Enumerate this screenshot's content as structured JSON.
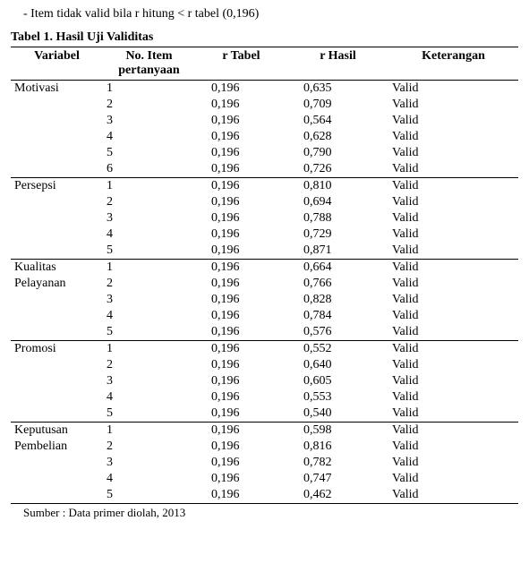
{
  "intro": "- Item tidak valid bila r hitung  < r tabel (0,196)",
  "title": "Tabel 1. Hasil Uji Validitas",
  "headers": {
    "variabel": "Variabel",
    "no_item_line1": "No. Item",
    "no_item_line2": "pertanyaan",
    "r_tabel": "r  Tabel",
    "r_hasil": "r  Hasil",
    "keterangan": "Keterangan"
  },
  "sections": [
    {
      "variabel": "Motivasi",
      "variabel_line2": "",
      "rows": [
        {
          "no": "1",
          "tabel": "0,196",
          "hasil": "0,635",
          "ket": "Valid"
        },
        {
          "no": "2",
          "tabel": "0,196",
          "hasil": "0,709",
          "ket": "Valid"
        },
        {
          "no": "3",
          "tabel": "0,196",
          "hasil": "0,564",
          "ket": "Valid"
        },
        {
          "no": "4",
          "tabel": "0,196",
          "hasil": "0,628",
          "ket": "Valid"
        },
        {
          "no": "5",
          "tabel": "0,196",
          "hasil": "0,790",
          "ket": "Valid"
        },
        {
          "no": "6",
          "tabel": "0,196",
          "hasil": "0,726",
          "ket": "Valid"
        }
      ]
    },
    {
      "variabel": "Persepsi",
      "variabel_line2": "",
      "rows": [
        {
          "no": "1",
          "tabel": "0,196",
          "hasil": "0,810",
          "ket": "Valid"
        },
        {
          "no": "2",
          "tabel": "0,196",
          "hasil": "0,694",
          "ket": "Valid"
        },
        {
          "no": "3",
          "tabel": "0,196",
          "hasil": "0,788",
          "ket": "Valid"
        },
        {
          "no": "4",
          "tabel": "0,196",
          "hasil": "0,729",
          "ket": "Valid"
        },
        {
          "no": "5",
          "tabel": "0,196",
          "hasil": "0,871",
          "ket": "Valid"
        }
      ]
    },
    {
      "variabel": "Kualitas",
      "variabel_line2": "Pelayanan",
      "rows": [
        {
          "no": "1",
          "tabel": "0,196",
          "hasil": "0,664",
          "ket": "Valid"
        },
        {
          "no": "2",
          "tabel": "0,196",
          "hasil": "0,766",
          "ket": "Valid"
        },
        {
          "no": "3",
          "tabel": "0,196",
          "hasil": "0,828",
          "ket": "Valid"
        },
        {
          "no": "4",
          "tabel": "0,196",
          "hasil": "0,784",
          "ket": "Valid"
        },
        {
          "no": "5",
          "tabel": "0,196",
          "hasil": "0,576",
          "ket": "Valid"
        }
      ]
    },
    {
      "variabel": "Promosi",
      "variabel_line2": "",
      "rows": [
        {
          "no": "1",
          "tabel": "0,196",
          "hasil": "0,552",
          "ket": "Valid"
        },
        {
          "no": "2",
          "tabel": "0,196",
          "hasil": "0,640",
          "ket": "Valid"
        },
        {
          "no": "3",
          "tabel": "0,196",
          "hasil": "0,605",
          "ket": "Valid"
        },
        {
          "no": "4",
          "tabel": "0,196",
          "hasil": "0,553",
          "ket": "Valid"
        },
        {
          "no": "5",
          "tabel": "0,196",
          "hasil": "0,540",
          "ket": "Valid"
        }
      ]
    },
    {
      "variabel": "Keputusan",
      "variabel_line2": "Pembelian",
      "rows": [
        {
          "no": "1",
          "tabel": "0,196",
          "hasil": "0,598",
          "ket": "Valid"
        },
        {
          "no": "2",
          "tabel": "0,196",
          "hasil": "0,816",
          "ket": "Valid"
        },
        {
          "no": "3",
          "tabel": "0,196",
          "hasil": "0,782",
          "ket": "Valid"
        },
        {
          "no": "4",
          "tabel": "0,196",
          "hasil": "0,747",
          "ket": "Valid"
        },
        {
          "no": "5",
          "tabel": "0,196",
          "hasil": "0,462",
          "ket": "Valid"
        }
      ]
    }
  ],
  "source": "Sumber : Data primer diolah, 2013"
}
